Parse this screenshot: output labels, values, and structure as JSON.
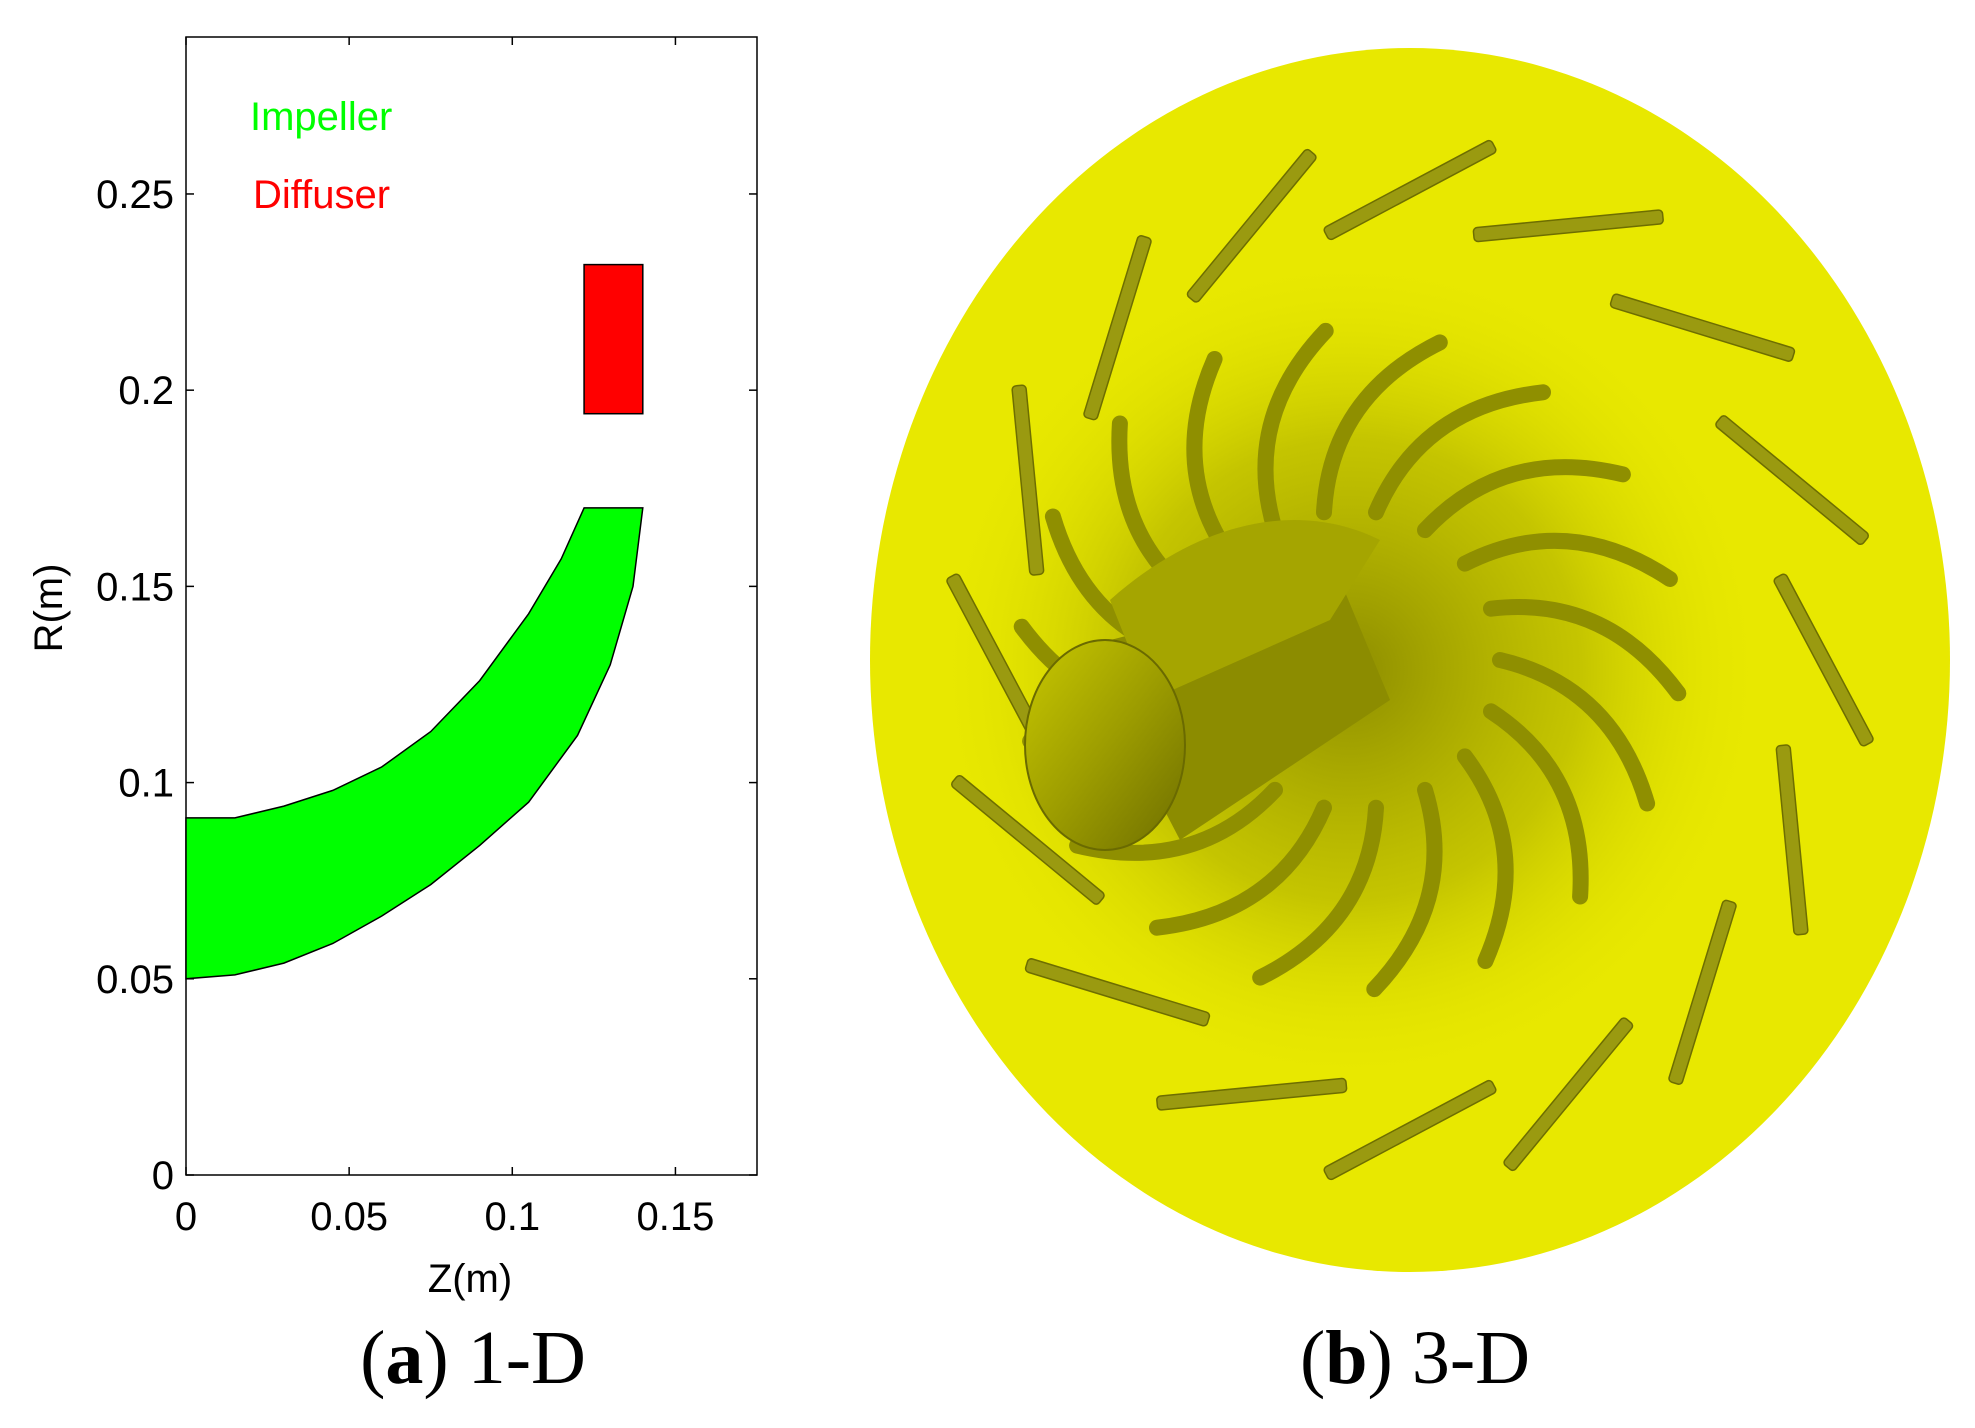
{
  "colors": {
    "impeller": "#00ff00",
    "diffuser": "#ff0000",
    "axis": "#000000",
    "rotor_face": "#e8e800",
    "rotor_dark": "#8a8a00",
    "blade": "#9a9a10"
  },
  "panel_a": {
    "caption_letter": "a",
    "caption_text": "1-D",
    "legend": {
      "impeller": "Impeller",
      "diffuser": "Diffuser"
    },
    "chart_data": {
      "type": "area",
      "title": "",
      "xlabel": "Z(m)",
      "ylabel": "R(m)",
      "xlim": [
        0,
        0.175
      ],
      "ylim": [
        0,
        0.29
      ],
      "xticks": [
        0,
        0.05,
        0.1,
        0.15
      ],
      "xtick_labels": [
        "0",
        "0.05",
        "0.1",
        "0.15"
      ],
      "yticks": [
        0,
        0.05,
        0.1,
        0.15,
        0.2,
        0.25
      ],
      "ytick_labels": [
        "0",
        "0.05",
        "0.1",
        "0.15",
        "0.2",
        "0.25"
      ],
      "series": [
        {
          "name": "Impeller",
          "shroud": [
            [
              0,
              0.091
            ],
            [
              0.015,
              0.091
            ],
            [
              0.03,
              0.094
            ],
            [
              0.045,
              0.098
            ],
            [
              0.06,
              0.104
            ],
            [
              0.075,
              0.113
            ],
            [
              0.09,
              0.126
            ],
            [
              0.105,
              0.143
            ],
            [
              0.115,
              0.157
            ],
            [
              0.122,
              0.17
            ],
            [
              0.14,
              0.17
            ]
          ],
          "hub": [
            [
              0.14,
              0.17
            ],
            [
              0.137,
              0.15
            ],
            [
              0.13,
              0.13
            ],
            [
              0.12,
              0.112
            ],
            [
              0.105,
              0.095
            ],
            [
              0.09,
              0.084
            ],
            [
              0.075,
              0.074
            ],
            [
              0.06,
              0.066
            ],
            [
              0.045,
              0.059
            ],
            [
              0.03,
              0.054
            ],
            [
              0.015,
              0.051
            ],
            [
              0,
              0.05
            ]
          ]
        },
        {
          "name": "Diffuser",
          "rect": {
            "z": [
              0.122,
              0.14
            ],
            "r": [
              0.194,
              0.232
            ]
          }
        }
      ]
    }
  },
  "panel_b": {
    "caption_letter": "b",
    "caption_text": "3-D"
  }
}
